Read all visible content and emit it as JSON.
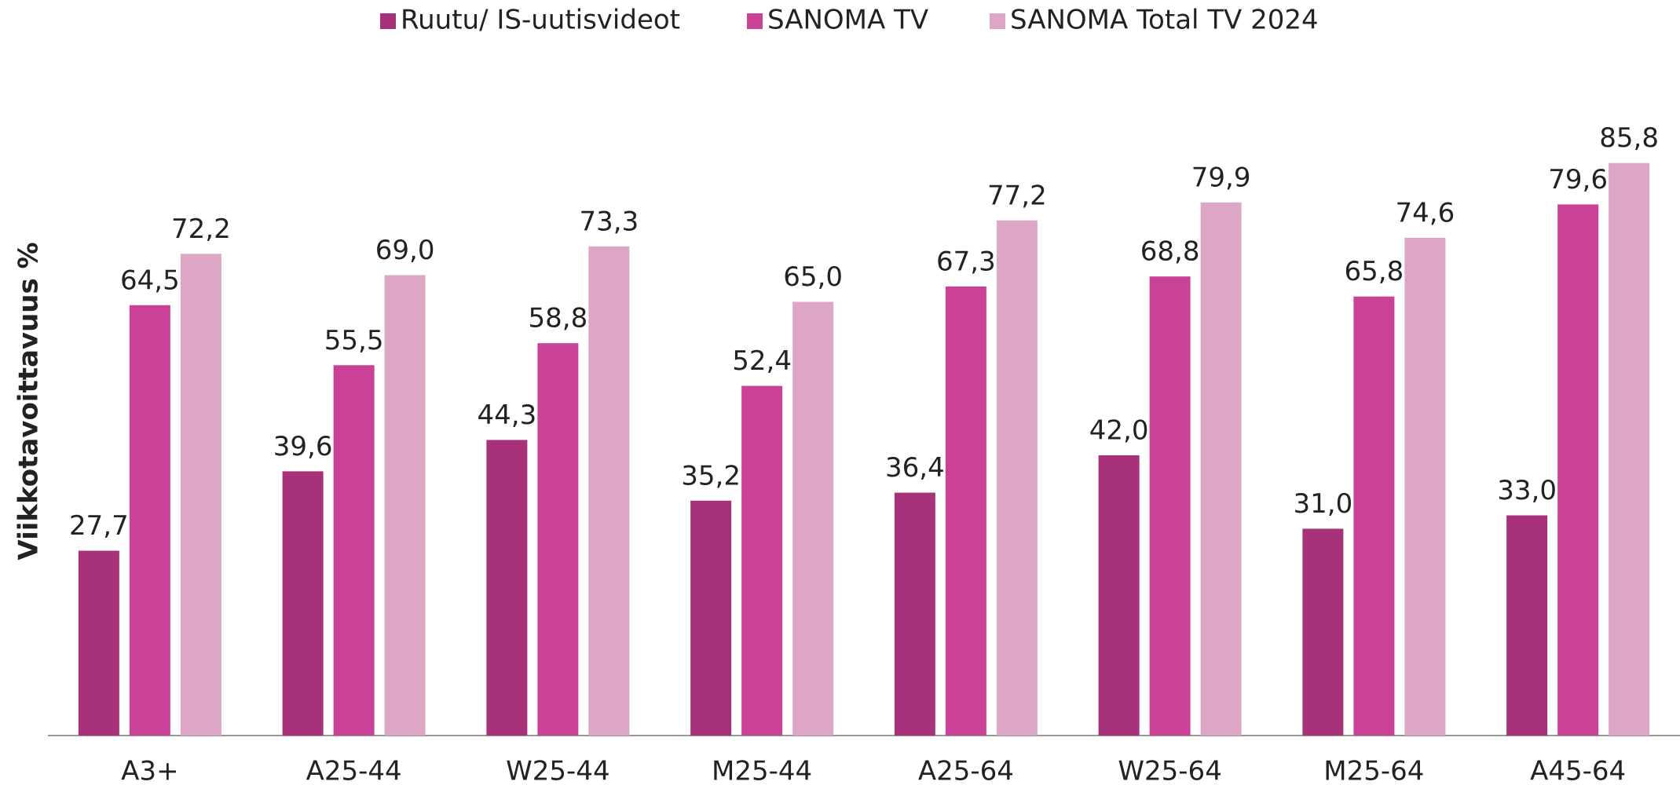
{
  "chart_data": {
    "type": "bar",
    "y_label": "Viikkotavoittavuus %",
    "categories": [
      "A3+",
      "A25-44",
      "W25-44",
      "M25-44",
      "A25-64",
      "W25-64",
      "M25-64",
      "A45-64"
    ],
    "series": [
      {
        "name": "Ruutu/ IS-uutisvideot",
        "color": "#a8327a",
        "values": [
          27.7,
          39.6,
          44.3,
          35.2,
          36.4,
          42.0,
          31.0,
          33.0
        ],
        "value_labels": [
          "27,7",
          "39,6",
          "44,3",
          "35,2",
          "36,4",
          "42,0",
          "31,0",
          "33,0"
        ]
      },
      {
        "name": "SANOMA TV",
        "color": "#c94298",
        "values": [
          64.5,
          55.5,
          58.8,
          52.4,
          67.3,
          68.8,
          65.8,
          79.6
        ],
        "value_labels": [
          "64,5",
          "55,5",
          "58,8",
          "52,4",
          "67,3",
          "68,8",
          "65,8",
          "79,6"
        ]
      },
      {
        "name": "SANOMA Total TV 2024",
        "color": "#dea6c6",
        "values": [
          72.2,
          69.0,
          73.3,
          65.0,
          77.2,
          79.9,
          74.6,
          85.8
        ],
        "value_labels": [
          "72,2",
          "69,0",
          "73,3",
          "65,0",
          "77,2",
          "79,9",
          "74,6",
          "85,8"
        ]
      }
    ],
    "ylim": [
      0,
      100
    ],
    "legend": "top"
  }
}
